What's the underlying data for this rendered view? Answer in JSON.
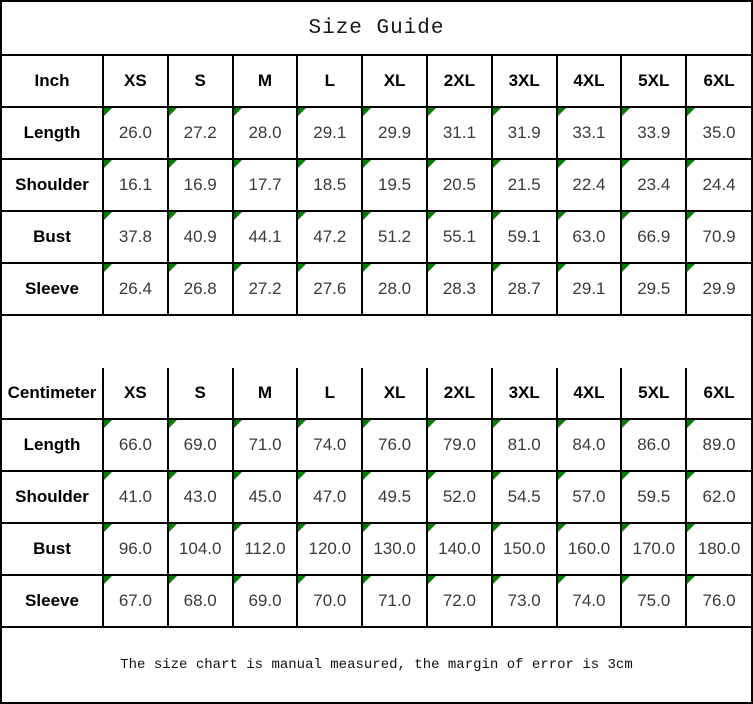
{
  "title": "Size Guide",
  "footer_note": "The size chart is manual measured, the margin of error is 3cm",
  "colors": {
    "border": "#000000",
    "comment_triangle": "#008000",
    "header_text": "#000000",
    "value_text": "#3a3a3a"
  },
  "chart_data": [
    {
      "type": "table",
      "unit": "Inch",
      "columns": [
        "XS",
        "S",
        "M",
        "L",
        "XL",
        "2XL",
        "3XL",
        "4XL",
        "5XL",
        "6XL"
      ],
      "rows": [
        {
          "label": "Length",
          "values": [
            "26.0",
            "27.2",
            "28.0",
            "29.1",
            "29.9",
            "31.1",
            "31.9",
            "33.1",
            "33.9",
            "35.0"
          ]
        },
        {
          "label": "Shoulder",
          "values": [
            "16.1",
            "16.9",
            "17.7",
            "18.5",
            "19.5",
            "20.5",
            "21.5",
            "22.4",
            "23.4",
            "24.4"
          ]
        },
        {
          "label": "Bust",
          "values": [
            "37.8",
            "40.9",
            "44.1",
            "47.2",
            "51.2",
            "55.1",
            "59.1",
            "63.0",
            "66.9",
            "70.9"
          ]
        },
        {
          "label": "Sleeve",
          "values": [
            "26.4",
            "26.8",
            "27.2",
            "27.6",
            "28.0",
            "28.3",
            "28.7",
            "29.1",
            "29.5",
            "29.9"
          ]
        }
      ]
    },
    {
      "type": "table",
      "unit": "Centimeter",
      "columns": [
        "XS",
        "S",
        "M",
        "L",
        "XL",
        "2XL",
        "3XL",
        "4XL",
        "5XL",
        "6XL"
      ],
      "rows": [
        {
          "label": "Length",
          "values": [
            "66.0",
            "69.0",
            "71.0",
            "74.0",
            "76.0",
            "79.0",
            "81.0",
            "84.0",
            "86.0",
            "89.0"
          ]
        },
        {
          "label": "Shoulder",
          "values": [
            "41.0",
            "43.0",
            "45.0",
            "47.0",
            "49.5",
            "52.0",
            "54.5",
            "57.0",
            "59.5",
            "62.0"
          ]
        },
        {
          "label": "Bust",
          "values": [
            "96.0",
            "104.0",
            "112.0",
            "120.0",
            "130.0",
            "140.0",
            "150.0",
            "160.0",
            "170.0",
            "180.0"
          ]
        },
        {
          "label": "Sleeve",
          "values": [
            "67.0",
            "68.0",
            "69.0",
            "70.0",
            "71.0",
            "72.0",
            "73.0",
            "74.0",
            "75.0",
            "76.0"
          ]
        }
      ]
    }
  ]
}
